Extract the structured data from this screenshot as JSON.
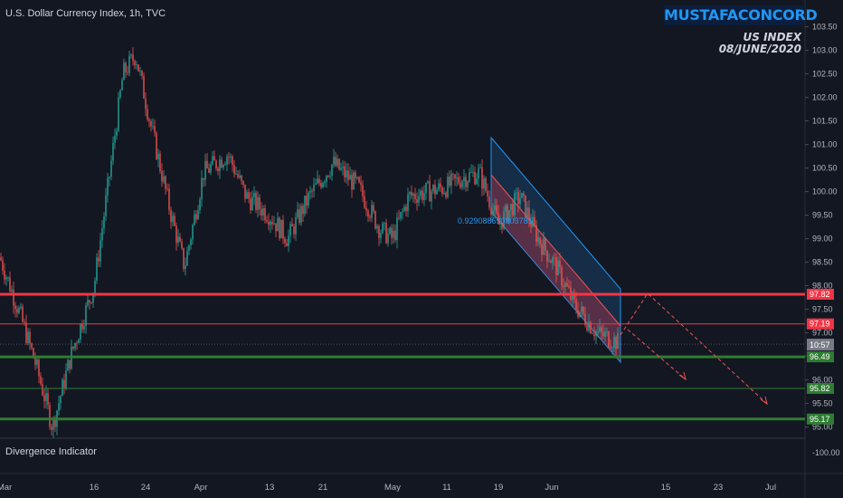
{
  "header": {
    "title": "U.S. Dollar Currency Index, 1h, TVC"
  },
  "brand": {
    "label": "MUSTAFACONCORD"
  },
  "annotation": {
    "line1": "US INDEX",
    "line2": "08/JUNE/2020"
  },
  "indicator": {
    "label": "Divergence Indicator",
    "axis_label": "-100.00"
  },
  "channel_label": "0.929088690803781",
  "colors": {
    "background": "#131722",
    "up": "#26a69a",
    "down": "#ef5350",
    "resistance": "#f23645",
    "support": "#2e7d32",
    "channel_blue": "#2196f3"
  },
  "chart_data": {
    "type": "candlestick",
    "title": "U.S. Dollar Currency Index, 1h, TVC",
    "ylim": [
      94.8,
      103.8
    ],
    "y_ticks": [
      "103.50",
      "103.00",
      "102.50",
      "102.00",
      "101.50",
      "101.00",
      "100.50",
      "100.00",
      "99.50",
      "99.00",
      "98.50",
      "98.00",
      "97.50",
      "97.00",
      "96.50",
      "96.00",
      "95.50",
      "95.00"
    ],
    "x_ticks": [
      "Mar",
      "16",
      "24",
      "Apr",
      "13",
      "21",
      "May",
      "11",
      "19",
      "Jun",
      "15",
      "23",
      "Jul"
    ],
    "close_path": [
      {
        "t": "Mar",
        "v": 98.6
      },
      {
        "t": "Mar 4",
        "v": 97.4
      },
      {
        "t": "Mar 7",
        "v": 96.3
      },
      {
        "t": "Mar 9",
        "v": 95.0
      },
      {
        "t": "Mar 12",
        "v": 96.5
      },
      {
        "t": "Mar 16",
        "v": 98.0
      },
      {
        "t": "Mar 18",
        "v": 100.2
      },
      {
        "t": "Mar 20",
        "v": 102.5
      },
      {
        "t": "Mar 22",
        "v": 102.9
      },
      {
        "t": "Mar 25",
        "v": 101.3
      },
      {
        "t": "Mar 27",
        "v": 99.6
      },
      {
        "t": "Mar 31",
        "v": 98.4
      },
      {
        "t": "Apr 3",
        "v": 100.4
      },
      {
        "t": "Apr 6",
        "v": 100.8
      },
      {
        "t": "Apr 9",
        "v": 99.9
      },
      {
        "t": "Apr 13",
        "v": 99.5
      },
      {
        "t": "Apr 16",
        "v": 99.0
      },
      {
        "t": "Apr 20",
        "v": 99.9
      },
      {
        "t": "Apr 24",
        "v": 100.6
      },
      {
        "t": "Apr 28",
        "v": 100.1
      },
      {
        "t": "May 2",
        "v": 99.2
      },
      {
        "t": "May 5",
        "v": 99.0
      },
      {
        "t": "May 7",
        "v": 99.9
      },
      {
        "t": "May 11",
        "v": 100.1
      },
      {
        "t": "May 14",
        "v": 100.3
      },
      {
        "t": "May 17",
        "v": 100.4
      },
      {
        "t": "May 20",
        "v": 99.3
      },
      {
        "t": "May 24",
        "v": 99.9
      },
      {
        "t": "May 27",
        "v": 99.0
      },
      {
        "t": "May 30",
        "v": 98.4
      },
      {
        "t": "Jun 2",
        "v": 97.6
      },
      {
        "t": "Jun 5",
        "v": 97.0
      },
      {
        "t": "Jun 8",
        "v": 96.8
      }
    ],
    "horizontal_levels": [
      {
        "value": 97.82,
        "label": "97.82",
        "color": "#f23645"
      },
      {
        "value": 97.19,
        "label": "97.19",
        "color": "#f23645"
      },
      {
        "value": 96.49,
        "label": "96.49",
        "color": "#2e7d32"
      },
      {
        "value": 95.82,
        "label": "95.82",
        "color": "#2e7d32"
      },
      {
        "value": 95.17,
        "label": "95.17",
        "color": "#2e7d32"
      }
    ],
    "price_tags": [
      {
        "label": "96.76",
        "bg": "#787b86"
      },
      {
        "label": "10:57",
        "bg": "#787b86"
      }
    ]
  }
}
